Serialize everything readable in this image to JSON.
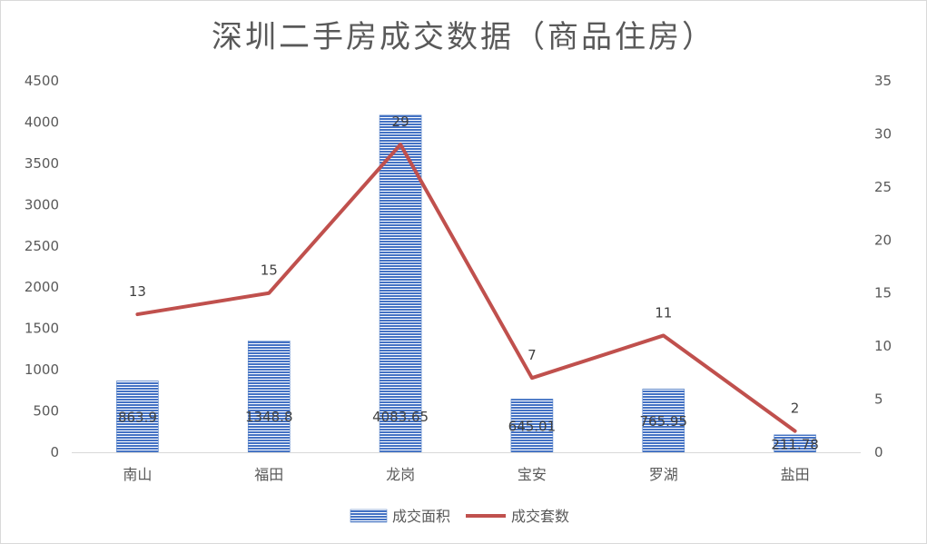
{
  "chart_data": {
    "type": "bar",
    "title": "深圳二手房成交数据（商品住房）",
    "categories": [
      "南山",
      "福田",
      "龙岗",
      "宝安",
      "罗湖",
      "盐田"
    ],
    "series": [
      {
        "name": "成交面积",
        "type": "bar",
        "axis": "left",
        "values": [
          863.9,
          1348.8,
          4083.65,
          645.01,
          765.95,
          211.78
        ],
        "labels": [
          "863.9",
          "1348.8",
          "4083.65",
          "645.01",
          "765.95",
          "211.78"
        ],
        "color": "#4472C4"
      },
      {
        "name": "成交套数",
        "type": "line",
        "axis": "right",
        "values": [
          13,
          15,
          29,
          7,
          11,
          2
        ],
        "labels": [
          "13",
          "15",
          "29",
          "7",
          "11",
          "2"
        ],
        "color": "#C0504D"
      }
    ],
    "y_left": {
      "min": 0,
      "max": 4500,
      "step": 500,
      "ticks": [
        "0",
        "500",
        "1000",
        "1500",
        "2000",
        "2500",
        "3000",
        "3500",
        "4000",
        "4500"
      ]
    },
    "y_right": {
      "min": 0,
      "max": 35,
      "step": 5,
      "ticks": [
        "0",
        "5",
        "10",
        "15",
        "20",
        "25",
        "30",
        "35"
      ]
    },
    "grid": false,
    "legend_position": "bottom"
  }
}
